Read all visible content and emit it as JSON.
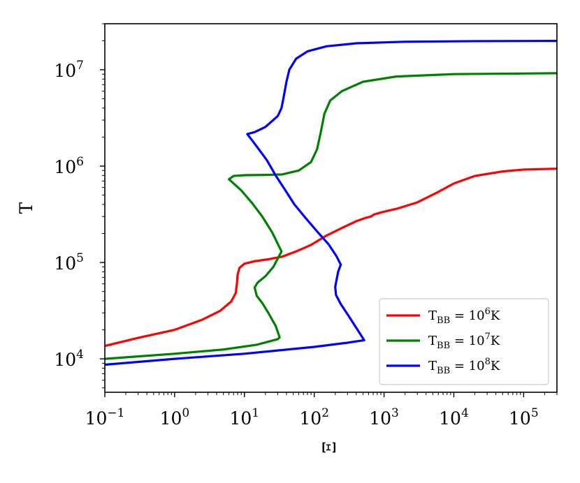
{
  "chart_data": {
    "type": "line",
    "title": "",
    "xlabel": "Ξ",
    "ylabel": "T",
    "xscale": "log",
    "yscale": "log",
    "xlim": [
      0.1,
      300000
    ],
    "ylim": [
      4500,
      30000000
    ],
    "x_ticks": [
      {
        "value": 0.1,
        "base": "10",
        "exp": "−1"
      },
      {
        "value": 1,
        "base": "10",
        "exp": "0"
      },
      {
        "value": 10,
        "base": "10",
        "exp": "1"
      },
      {
        "value": 100,
        "base": "10",
        "exp": "2"
      },
      {
        "value": 1000,
        "base": "10",
        "exp": "3"
      },
      {
        "value": 10000,
        "base": "10",
        "exp": "4"
      },
      {
        "value": 100000,
        "base": "10",
        "exp": "5"
      }
    ],
    "y_ticks": [
      {
        "value": 10000,
        "base": "10",
        "exp": "4"
      },
      {
        "value": 100000,
        "base": "10",
        "exp": "5"
      },
      {
        "value": 1000000,
        "base": "10",
        "exp": "6"
      },
      {
        "value": 10000000,
        "base": "10",
        "exp": "7"
      }
    ],
    "grid": false,
    "legend_position": "lower-right",
    "series": [
      {
        "name": "T_BB = 10^6 K",
        "legend_parts": {
          "prefix": "T",
          "sub": "BB",
          "mid": " = 10",
          "sup": "6",
          "suffix": "K"
        },
        "color": "#ff0000",
        "points": [
          [
            0.1,
            13600
          ],
          [
            0.3,
            16500
          ],
          [
            1.0,
            20000
          ],
          [
            2.5,
            25500
          ],
          [
            4.5,
            31500
          ],
          [
            6.5,
            39500
          ],
          [
            7.5,
            48000
          ],
          [
            7.8,
            60000
          ],
          [
            8.0,
            75000
          ],
          [
            8.5,
            88000
          ],
          [
            10,
            97000
          ],
          [
            14,
            103000
          ],
          [
            22,
            108000
          ],
          [
            35,
            115000
          ],
          [
            55,
            130000
          ],
          [
            90,
            152000
          ],
          [
            150,
            190000
          ],
          [
            250,
            228000
          ],
          [
            400,
            268000
          ],
          [
            560,
            292000
          ],
          [
            650,
            300000
          ],
          [
            720,
            315000
          ],
          [
            900,
            330000
          ],
          [
            1500,
            360000
          ],
          [
            3000,
            420000
          ],
          [
            6000,
            540000
          ],
          [
            10000,
            660000
          ],
          [
            20000,
            790000
          ],
          [
            50000,
            880000
          ],
          [
            100000,
            920000
          ],
          [
            300000,
            940000
          ]
        ]
      },
      {
        "name": "T_BB = 10^7 K",
        "legend_parts": {
          "prefix": "T",
          "sub": "BB",
          "mid": " = 10",
          "sup": "7",
          "suffix": "K"
        },
        "color": "#008000",
        "points": [
          [
            0.1,
            10000
          ],
          [
            1,
            11300
          ],
          [
            5,
            12500
          ],
          [
            15,
            14000
          ],
          [
            30,
            16000
          ],
          [
            32,
            16700
          ],
          [
            28,
            22000
          ],
          [
            22,
            30000
          ],
          [
            18,
            38000
          ],
          [
            15,
            45000
          ],
          [
            14,
            55000
          ],
          [
            15.5,
            62000
          ],
          [
            20,
            72000
          ],
          [
            26,
            90000
          ],
          [
            32,
            120000
          ],
          [
            34,
            130000
          ],
          [
            25,
            205000
          ],
          [
            18,
            300000
          ],
          [
            13,
            410000
          ],
          [
            9,
            560000
          ],
          [
            6,
            730000
          ],
          [
            7,
            790000
          ],
          [
            10,
            805000
          ],
          [
            20,
            810000
          ],
          [
            35,
            820000
          ],
          [
            60,
            900000
          ],
          [
            90,
            1100000
          ],
          [
            110,
            1500000
          ],
          [
            125,
            2300000
          ],
          [
            140,
            3500000
          ],
          [
            170,
            4800000
          ],
          [
            250,
            6000000
          ],
          [
            500,
            7500000
          ],
          [
            1500,
            8500000
          ],
          [
            10000,
            9000000
          ],
          [
            300000,
            9200000
          ]
        ]
      },
      {
        "name": "T_BB = 10^8 K",
        "legend_parts": {
          "prefix": "T",
          "sub": "BB",
          "mid": " = 10",
          "sup": "8",
          "suffix": "K"
        },
        "color": "#0000ff",
        "points": [
          [
            0.1,
            8700
          ],
          [
            1,
            10000
          ],
          [
            10,
            11300
          ],
          [
            100,
            13300
          ],
          [
            300,
            14700
          ],
          [
            520,
            15600
          ],
          [
            400,
            21000
          ],
          [
            300,
            29000
          ],
          [
            240,
            37000
          ],
          [
            205,
            46000
          ],
          [
            200,
            56000
          ],
          [
            220,
            80000
          ],
          [
            240,
            95000
          ],
          [
            210,
            115000
          ],
          [
            160,
            155000
          ],
          [
            110,
            210000
          ],
          [
            75,
            290000
          ],
          [
            52,
            400000
          ],
          [
            38,
            570000
          ],
          [
            28,
            800000
          ],
          [
            21,
            1150000
          ],
          [
            15,
            1600000
          ],
          [
            11,
            2150000
          ],
          [
            14,
            2250000
          ],
          [
            20,
            2550000
          ],
          [
            30,
            3300000
          ],
          [
            34,
            4000000
          ],
          [
            37,
            5500000
          ],
          [
            40,
            7500000
          ],
          [
            44,
            10000000
          ],
          [
            55,
            13000000
          ],
          [
            80,
            15500000
          ],
          [
            150,
            17500000
          ],
          [
            400,
            18800000
          ],
          [
            2000,
            19500000
          ],
          [
            20000,
            19800000
          ],
          [
            300000,
            19900000
          ]
        ]
      }
    ]
  }
}
